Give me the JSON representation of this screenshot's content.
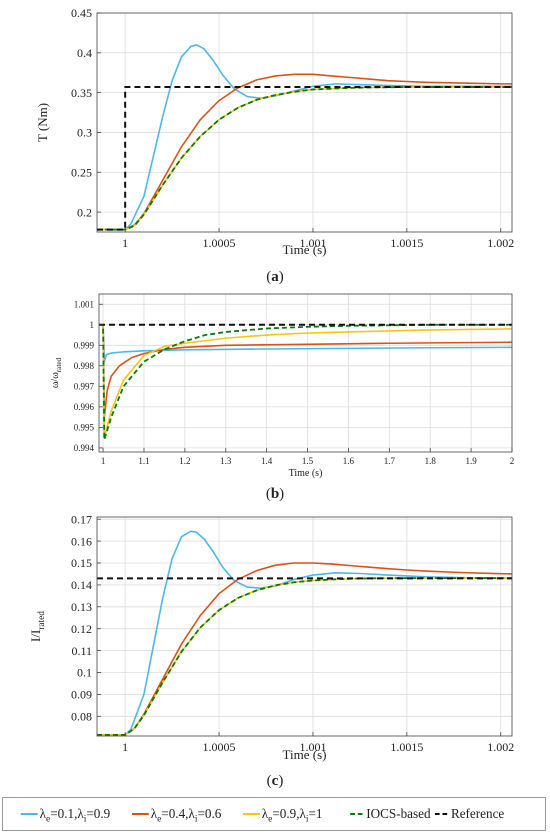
{
  "captions": {
    "a": "a",
    "b": "b",
    "c": "c"
  },
  "legend": [
    {
      "series": 0,
      "prefix": "λ",
      "sub1": "e",
      "mid": "=0.1,λ",
      "sub2": "i",
      "suffix": "=0.9",
      "style": "solid"
    },
    {
      "series": 1,
      "prefix": "λ",
      "sub1": "e",
      "mid": "=0.4,λ",
      "sub2": "i",
      "suffix": "=0.6",
      "style": "solid"
    },
    {
      "series": 2,
      "prefix": "λ",
      "sub1": "e",
      "mid": "=0.9,λ",
      "sub2": "i",
      "suffix": "=1",
      "style": "solid"
    },
    {
      "series": 3,
      "text": "IOCS-based",
      "style": "dashed"
    },
    {
      "series": 4,
      "text": "Reference",
      "style": "dashed"
    }
  ],
  "colors": [
    "#4db8e8",
    "#d95319",
    "#f5c518",
    "#0a7a0a",
    "#111111"
  ],
  "chart_data": [
    {
      "type": "line",
      "xlabel": "Time (s)",
      "ylabel": "T (Nm)",
      "xlim": [
        0.99985,
        1.00206
      ],
      "ylim": [
        0.175,
        0.45
      ],
      "xticks": [
        1,
        1.0005,
        1.001,
        1.0015,
        1.002
      ],
      "xtick_labels": [
        "1",
        "1.0005",
        "1.001",
        "1.0015",
        "1.002"
      ],
      "yticks": [
        0.2,
        0.25,
        0.3,
        0.35,
        0.4,
        0.45
      ],
      "ytick_labels": [
        "0.2",
        "0.25",
        "0.3",
        "0.35",
        "0.4",
        "0.45"
      ],
      "grid": true,
      "series": [
        {
          "x": [
            0.99985,
            1.0,
            1.00003,
            1.0001,
            1.00015,
            1.0002,
            1.00025,
            1.0003,
            1.00035,
            1.00038,
            1.00042,
            1.00047,
            1.00052,
            1.00058,
            1.00065,
            1.00072,
            1.0008,
            1.0009,
            1.001,
            1.00112,
            1.00125,
            1.0014,
            1.0016,
            1.0018,
            1.00206
          ],
          "y": [
            0.178,
            0.178,
            0.185,
            0.22,
            0.27,
            0.32,
            0.365,
            0.395,
            0.408,
            0.41,
            0.405,
            0.39,
            0.372,
            0.355,
            0.345,
            0.343,
            0.346,
            0.352,
            0.358,
            0.361,
            0.36,
            0.359,
            0.358,
            0.358,
            0.358
          ]
        },
        {
          "x": [
            0.99985,
            1.0,
            1.00005,
            1.0001,
            1.0002,
            1.0003,
            1.0004,
            1.0005,
            1.0006,
            1.0007,
            1.0008,
            1.0009,
            1.001,
            1.0011,
            1.0012,
            1.0013,
            1.0014,
            1.0015,
            1.0016,
            1.0018,
            1.002,
            1.00206
          ],
          "y": [
            0.178,
            0.178,
            0.184,
            0.198,
            0.24,
            0.282,
            0.316,
            0.34,
            0.356,
            0.366,
            0.371,
            0.373,
            0.373,
            0.371,
            0.369,
            0.367,
            0.365,
            0.364,
            0.363,
            0.362,
            0.361,
            0.361
          ]
        },
        {
          "x": [
            0.99985,
            1.0,
            1.00005,
            1.0001,
            1.0002,
            1.0003,
            1.0004,
            1.0005,
            1.0006,
            1.0007,
            1.0008,
            1.0009,
            1.001,
            1.0011,
            1.0012,
            1.0013,
            1.0015,
            1.0017,
            1.002,
            1.00206
          ],
          "y": [
            0.178,
            0.178,
            0.183,
            0.197,
            0.234,
            0.268,
            0.295,
            0.316,
            0.331,
            0.341,
            0.347,
            0.351,
            0.354,
            0.355,
            0.356,
            0.3565,
            0.357,
            0.357,
            0.357,
            0.357
          ]
        },
        {
          "x": [
            0.99985,
            1.0,
            1.00005,
            1.0001,
            1.0002,
            1.0003,
            1.0004,
            1.0005,
            1.0006,
            1.0007,
            1.0008,
            1.0009,
            1.001,
            1.0011,
            1.0012,
            1.0013,
            1.0015,
            1.0017,
            1.002,
            1.00206
          ],
          "y": [
            0.178,
            0.178,
            0.183,
            0.197,
            0.234,
            0.268,
            0.295,
            0.316,
            0.331,
            0.341,
            0.347,
            0.351,
            0.354,
            0.355,
            0.356,
            0.3565,
            0.357,
            0.357,
            0.357,
            0.357
          ]
        },
        {
          "x": [
            0.99985,
            1.0,
            1.0,
            1.00206
          ],
          "y": [
            0.178,
            0.178,
            0.357,
            0.357
          ]
        }
      ]
    },
    {
      "type": "line",
      "xlabel": "Time (s)",
      "ylabel": "ω/ωrated",
      "xlim": [
        0.99,
        2.0
      ],
      "ylim": [
        0.9938,
        1.0015
      ],
      "xticks": [
        1,
        1.1,
        1.2,
        1.3,
        1.4,
        1.5,
        1.6,
        1.7,
        1.8,
        1.9,
        2
      ],
      "xtick_labels": [
        "1",
        "1.1",
        "1.2",
        "1.3",
        "1.4",
        "1.5",
        "1.6",
        "1.7",
        "1.8",
        "1.9",
        "2"
      ],
      "yticks": [
        0.994,
        0.995,
        0.996,
        0.997,
        0.998,
        0.999,
        1,
        1.001
      ],
      "ytick_labels": [
        "0.994",
        "0.995",
        "0.996",
        "0.997",
        "0.998",
        "0.999",
        "1",
        "1.001"
      ],
      "grid": true,
      "series": [
        {
          "x": [
            0.99,
            1.0,
            1.003,
            1.008,
            1.02,
            1.05,
            1.1,
            1.2,
            1.4,
            1.6,
            1.8,
            2.0
          ],
          "y": [
            1.0,
            1.0,
            0.9982,
            0.99855,
            0.99862,
            0.99868,
            0.99873,
            0.99878,
            0.99882,
            0.99885,
            0.99888,
            0.9989
          ]
        },
        {
          "x": [
            0.99,
            1.0,
            1.003,
            1.01,
            1.02,
            1.04,
            1.07,
            1.1,
            1.15,
            1.2,
            1.3,
            1.5,
            1.7,
            2.0
          ],
          "y": [
            1.0,
            1.0,
            0.9955,
            0.9968,
            0.9975,
            0.998,
            0.9984,
            0.9986,
            0.9988,
            0.9989,
            0.999,
            0.99905,
            0.9991,
            0.99915
          ]
        },
        {
          "x": [
            0.99,
            1.0,
            1.003,
            1.02,
            1.05,
            1.1,
            1.15,
            1.2,
            1.3,
            1.4,
            1.5,
            1.6,
            1.8,
            2.0
          ],
          "y": [
            1.0,
            1.0,
            0.9945,
            0.9958,
            0.9973,
            0.9985,
            0.99895,
            0.9991,
            0.99935,
            0.9995,
            0.9996,
            0.99965,
            0.99975,
            0.9998
          ]
        },
        {
          "x": [
            0.99,
            1.0,
            1.003,
            1.02,
            1.05,
            1.1,
            1.15,
            1.2,
            1.25,
            1.3,
            1.4,
            1.5,
            1.6,
            1.8,
            2.0
          ],
          "y": [
            1.0,
            1.0,
            0.9944,
            0.9955,
            0.997,
            0.9982,
            0.9988,
            0.9992,
            0.9995,
            0.99965,
            0.99982,
            0.9999,
            0.99995,
            1.0,
            1.0
          ]
        },
        {
          "x": [
            0.99,
            2.0
          ],
          "y": [
            1.0,
            1.0
          ]
        }
      ]
    },
    {
      "type": "line",
      "xlabel": "Time (s)",
      "ylabel": "I/Irated",
      "xlim": [
        0.99985,
        1.00206
      ],
      "ylim": [
        0.071,
        0.171
      ],
      "xticks": [
        1,
        1.0005,
        1.001,
        1.0015,
        1.002
      ],
      "xtick_labels": [
        "1",
        "1.0005",
        "1.001",
        "1.0015",
        "1.002"
      ],
      "yticks": [
        0.08,
        0.09,
        0.1,
        0.11,
        0.12,
        0.13,
        0.14,
        0.15,
        0.16,
        0.17
      ],
      "ytick_labels": [
        "0.08",
        "0.09",
        "0.1",
        "0.11",
        "0.12",
        "0.13",
        "0.14",
        "0.15",
        "0.16",
        "0.17"
      ],
      "grid": true,
      "series": [
        {
          "x": [
            0.99985,
            1.0,
            1.00003,
            1.0001,
            1.00015,
            1.0002,
            1.00025,
            1.0003,
            1.00035,
            1.00038,
            1.00042,
            1.00047,
            1.00052,
            1.00058,
            1.00065,
            1.00072,
            1.0008,
            1.0009,
            1.001,
            1.00112,
            1.00125,
            1.0014,
            1.0016,
            1.0018,
            1.00206
          ],
          "y": [
            0.0715,
            0.0715,
            0.074,
            0.09,
            0.112,
            0.134,
            0.152,
            0.162,
            0.1645,
            0.164,
            0.161,
            0.155,
            0.148,
            0.142,
            0.139,
            0.1385,
            0.1395,
            0.1425,
            0.1445,
            0.1455,
            0.1452,
            0.1445,
            0.1437,
            0.1433,
            0.143
          ]
        },
        {
          "x": [
            0.99985,
            1.0,
            1.00005,
            1.0001,
            1.0002,
            1.0003,
            1.0004,
            1.0005,
            1.0006,
            1.0007,
            1.0008,
            1.0009,
            1.001,
            1.0011,
            1.0012,
            1.0013,
            1.0014,
            1.0015,
            1.0016,
            1.0018,
            1.002,
            1.00206
          ],
          "y": [
            0.0715,
            0.0715,
            0.0745,
            0.081,
            0.097,
            0.113,
            0.126,
            0.136,
            0.1425,
            0.1465,
            0.149,
            0.15,
            0.15,
            0.1495,
            0.1488,
            0.1481,
            0.1474,
            0.1468,
            0.1463,
            0.1456,
            0.1451,
            0.145
          ]
        },
        {
          "x": [
            0.99985,
            1.0,
            1.00005,
            1.0001,
            1.0002,
            1.0003,
            1.0004,
            1.0005,
            1.0006,
            1.0007,
            1.0008,
            1.0009,
            1.001,
            1.0011,
            1.0012,
            1.0013,
            1.0015,
            1.0017,
            1.002,
            1.00206
          ],
          "y": [
            0.0715,
            0.0715,
            0.0745,
            0.0805,
            0.0955,
            0.1095,
            0.1205,
            0.1285,
            0.134,
            0.1375,
            0.1398,
            0.1412,
            0.142,
            0.1425,
            0.1428,
            0.143,
            0.1431,
            0.1431,
            0.1431,
            0.1431
          ]
        },
        {
          "x": [
            0.99985,
            1.0,
            1.00005,
            1.0001,
            1.0002,
            1.0003,
            1.0004,
            1.0005,
            1.0006,
            1.0007,
            1.0008,
            1.0009,
            1.001,
            1.0011,
            1.0012,
            1.0013,
            1.0015,
            1.0017,
            1.002,
            1.00206
          ],
          "y": [
            0.0715,
            0.0715,
            0.0745,
            0.0805,
            0.0955,
            0.1095,
            0.1205,
            0.1285,
            0.134,
            0.1375,
            0.1398,
            0.1412,
            0.142,
            0.1425,
            0.1428,
            0.143,
            0.1431,
            0.1431,
            0.1431,
            0.1431
          ]
        },
        {
          "x": [
            0.99985,
            1.00206
          ],
          "y": [
            0.143,
            0.143
          ]
        }
      ]
    }
  ]
}
